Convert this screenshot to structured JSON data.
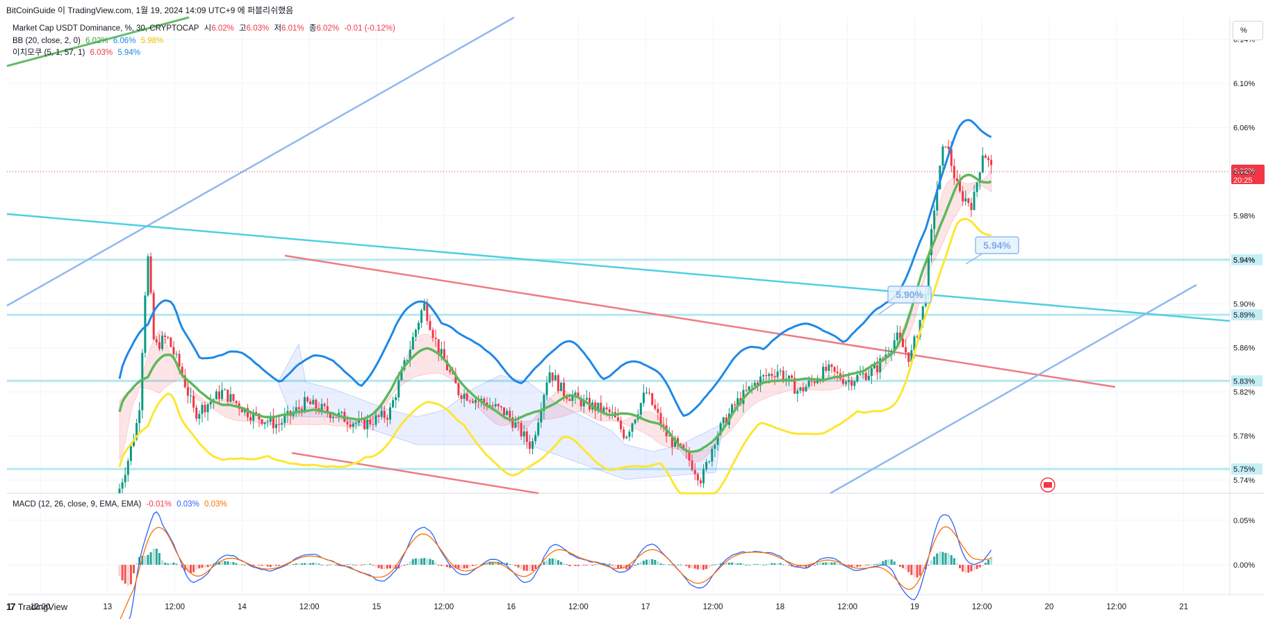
{
  "header": {
    "published_by": "BitCoinGuide 이 TradingView.com, 1월 19, 2024 14:09 UTC+9 에 퍼블리쉬했음"
  },
  "legend": {
    "symbol": "Market Cap USDT Dominance, %, 30, CRYPTOCAP",
    "open_label": "시",
    "open_value": "6.02%",
    "high_label": "고",
    "high_value": "6.03%",
    "low_label": "저",
    "low_value": "6.01%",
    "close_label": "종",
    "close_value": "6.02%",
    "change": "-0.01 (-0.12%)",
    "bb_label": "BB (20, close, 2, 0)",
    "bb_basis": "6.02%",
    "bb_upper": "6.06%",
    "bb_lower": "5.98%",
    "ichimoku_label": "이치모쿠 (5, 1, 57, 1)",
    "ichimoku_a": "6.03%",
    "ichimoku_b": "5.94%",
    "macd_label": "MACD (12, 26, close, 9, EMA, EMA)",
    "macd_hist": "-0.01%",
    "macd_line": "0.03%",
    "macd_signal": "0.03%"
  },
  "toolbar": {
    "percent_button": "%"
  },
  "branding": {
    "logo_text": "TradingView",
    "logo_mark": "17"
  },
  "colors": {
    "up": "#089981",
    "down": "#f23645",
    "bb_upper": "#1e88e5",
    "bb_basis": "#5fb85f",
    "ichimoku_lead": "#fde630",
    "trendline_blue": "#90b8f0",
    "trendline_cyan": "#4dd0e1",
    "trendline_red": "#f07a82",
    "hline": "#b3e8f0",
    "price_label": "#f23645"
  },
  "chart_data": {
    "type": "candlestick",
    "y_axis": {
      "ticks": [
        "6.14%",
        "6.10%",
        "6.06%",
        "6.02%",
        "5.98%",
        "5.94%",
        "5.90%",
        "5.86%",
        "5.82%",
        "5.78%",
        "5.74%"
      ],
      "range": [
        5.728,
        6.16
      ]
    },
    "x_axis": {
      "ticks": [
        "12:00",
        "13",
        "12:00",
        "14",
        "12:00",
        "15",
        "12:00",
        "16",
        "12:00",
        "17",
        "12:00",
        "18",
        "12:00",
        "19",
        "12:00",
        "20",
        "12:00",
        "21"
      ]
    },
    "last_price": {
      "value": 6.02,
      "label": "6.02%",
      "countdown": "20:25"
    },
    "horizontal_levels": [
      {
        "value": 5.94,
        "label": "5.94%"
      },
      {
        "value": 5.89,
        "label": "5.89%"
      },
      {
        "value": 5.83,
        "label": "5.83%"
      },
      {
        "value": 5.75,
        "label": "5.75%"
      }
    ],
    "callouts": [
      {
        "text": "5.90%"
      },
      {
        "text": "5.94%"
      }
    ],
    "macd": {
      "ticks": [
        "0.05%",
        "0.00%"
      ],
      "range": [
        -0.018,
        0.078
      ]
    },
    "indicators": [
      "BB (20, close, 2, 0)",
      "이치모쿠 (5, 1, 57, 1)",
      "MACD (12, 26, close, 9, EMA, EMA)"
    ]
  }
}
